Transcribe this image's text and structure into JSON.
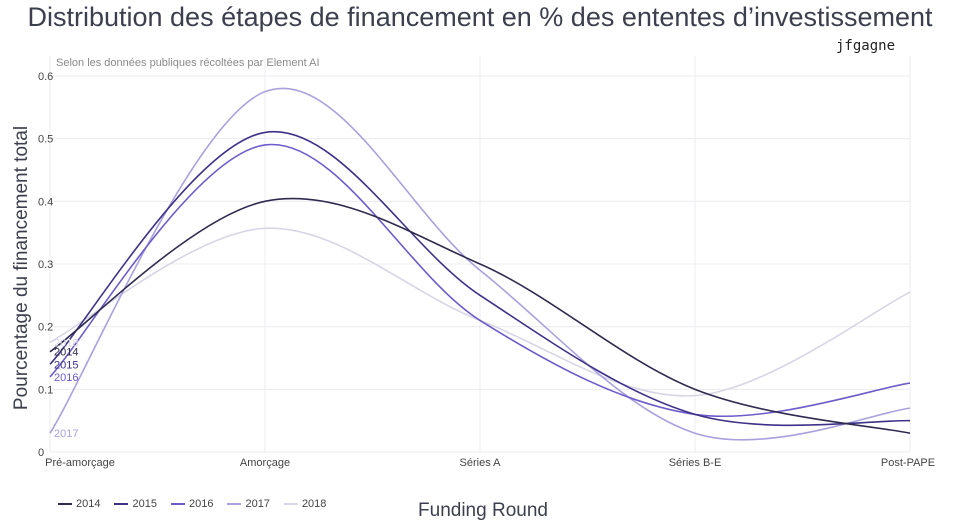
{
  "chart_data": {
    "type": "line",
    "title": "Distribution des étapes de financement en % des ententes d’investissement",
    "subtitle": "Selon les données publiques récoltées par Element AI",
    "author": "jfgagne",
    "xlabel": "Funding Round",
    "ylabel": "Pourcentage du financement total",
    "categories": [
      "Pré-amorçage",
      "Amorçage",
      "Séries A",
      "Séries B-E",
      "Post-PAPE"
    ],
    "ylim": [
      0,
      0.6
    ],
    "yticks": [
      "0",
      "0.1",
      "0.2",
      "0.3",
      "0.4",
      "0.5",
      "0.6"
    ],
    "grid": true,
    "legend_position": "bottom-left",
    "series": [
      {
        "name": "2014",
        "color": "#2e2b4f",
        "values": [
          0.16,
          0.4,
          0.3,
          0.1,
          0.03
        ]
      },
      {
        "name": "2015",
        "color": "#3d3288",
        "values": [
          0.14,
          0.51,
          0.25,
          0.06,
          0.05
        ]
      },
      {
        "name": "2016",
        "color": "#6c5bc9",
        "values": [
          0.12,
          0.49,
          0.21,
          0.06,
          0.11
        ]
      },
      {
        "name": "2017",
        "color": "#a9a1dd",
        "values": [
          0.03,
          0.575,
          0.29,
          0.03,
          0.07
        ]
      },
      {
        "name": "2018",
        "color": "#d8d6e6",
        "values": [
          0.175,
          0.357,
          0.21,
          0.09,
          0.255
        ]
      }
    ]
  }
}
